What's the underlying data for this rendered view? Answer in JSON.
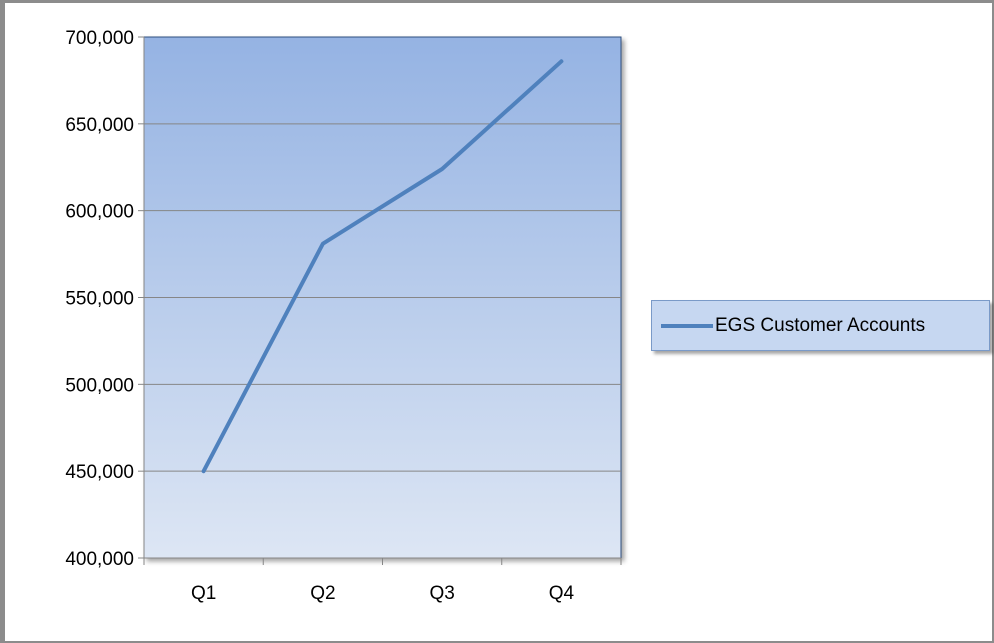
{
  "chart_data": {
    "type": "line",
    "categories": [
      "Q1",
      "Q2",
      "Q3",
      "Q4"
    ],
    "series": [
      {
        "name": "EGS Customer Accounts",
        "values": [
          450000,
          581000,
          624000,
          686000
        ],
        "color": "#4f81bd"
      }
    ],
    "y_ticks": [
      "400,000",
      "450,000",
      "500,000",
      "550,000",
      "600,000",
      "650,000",
      "700,000"
    ],
    "ylim": [
      400000,
      700000
    ],
    "grid": true,
    "legend_position": "right",
    "plot_background_gradient": [
      "#95b3e3",
      "#dde6f4"
    ]
  }
}
